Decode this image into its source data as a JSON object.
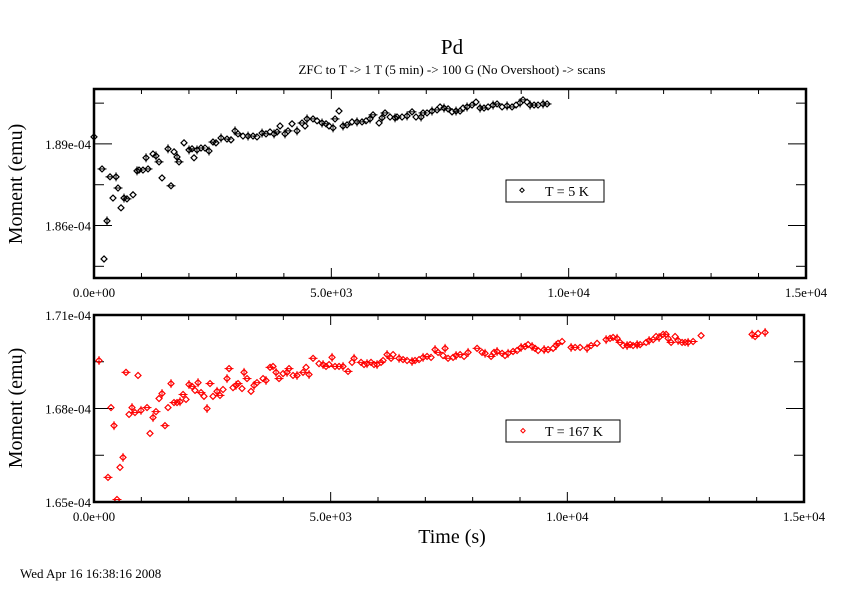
{
  "chart_data": {
    "title": "Pd",
    "subtitle": "ZFC to T -> 1 T (5 min) -> 100 G (No Overshoot) -> scans",
    "xlabel": "Time (s)",
    "timestamp": "Wed Apr 16 16:38:16 2008",
    "panels": [
      {
        "type": "scatter",
        "ylabel": "Moment (emu)",
        "xlim": [
          0,
          15000
        ],
        "ylim": [
          0.00018407,
          0.00019102
        ],
        "x_ticks": [
          0,
          5000,
          10000,
          15000
        ],
        "x_tick_labels": [
          "0.0e+00",
          "5.0e+03",
          "1.0e+04",
          "1.5e+04"
        ],
        "y_ticks": [
          0.000186,
          0.000189
        ],
        "y_tick_labels": [
          "1.86e-04",
          "1.89e-04"
        ],
        "grid": false,
        "legend_position": "center-right",
        "series": [
          {
            "name": "T = 5 K",
            "color": "#000000",
            "x": [
              0,
              169,
              211,
              274,
              337,
              400,
              464,
              506,
              569,
              632,
              695,
              822,
              906,
              948,
              1032,
              1096,
              1138,
              1243,
              1306,
              1370,
              1433,
              1559,
              1622,
              1686,
              1749,
              1791,
              1896,
              2002,
              2065,
              2107,
              2170,
              2254,
              2339,
              2423,
              2507,
              2570,
              2676,
              2802,
              2886,
              2971,
              3034,
              3139,
              3245,
              3350,
              3434,
              3540,
              3624,
              3708,
              3793,
              3856,
              3919,
              4024,
              4088,
              4172,
              4277,
              4383,
              4446,
              4488,
              4614,
              4699,
              4804,
              4888,
              4951,
              5036,
              5078,
              5162,
              5246,
              5331,
              5436,
              5541,
              5647,
              5731,
              5815,
              5878,
              6005,
              6068,
              6131,
              6237,
              6342,
              6384,
              6490,
              6595,
              6700,
              6784,
              6890,
              6932,
              7016,
              7121,
              7227,
              7290,
              7374,
              7459,
              7543,
              7627,
              7712,
              7775,
              7859,
              7964,
              8048,
              8133,
              8217,
              8302,
              8407,
              8491,
              8597,
              8702,
              8807,
              8892,
              8976,
              9039,
              9123,
              9187,
              9271,
              9355,
              9460,
              9545
            ],
            "y": [
              0.00018926,
              0.00018808,
              0.00018477,
              0.00018617,
              0.00018779,
              0.00018701,
              0.00018779,
              0.00018738,
              0.00018665,
              0.00018701,
              0.00018698,
              0.00018713,
              0.00018801,
              0.00018804,
              0.00018804,
              0.00018849,
              0.00018808,
              0.00018863,
              0.00018856,
              0.00018834,
              0.00018775,
              0.00018882,
              0.00018746,
              0.00018871,
              0.00018852,
              0.00018834,
              0.00018904,
              0.00018878,
              0.00018882,
              0.00018849,
              0.00018878,
              0.00018885,
              0.00018885,
              0.00018874,
              0.00018907,
              0.00018904,
              0.00018922,
              0.00018918,
              0.00018915,
              0.00018948,
              0.00018937,
              0.00018929,
              0.00018929,
              0.00018929,
              0.00018926,
              0.0001894,
              0.00018937,
              0.00018944,
              0.00018937,
              0.00018944,
              0.00018966,
              0.00018937,
              0.00018948,
              0.00018974,
              0.00018948,
              0.00018977,
              0.00018966,
              0.00018992,
              0.00018992,
              0.00018985,
              0.00018977,
              0.00018974,
              0.00018966,
              0.00018959,
              0.00018992,
              0.00019021,
              0.00018966,
              0.0001897,
              0.00018981,
              0.00018981,
              0.00018981,
              0.00018985,
              0.00018992,
              0.00019007,
              0.00018977,
              0.00018996,
              0.00019014,
              0.00018999,
              0.00018996,
              0.00018999,
              0.00018999,
              0.00019003,
              0.00019018,
              0.00018999,
              0.00018999,
              0.00019014,
              0.00019014,
              0.00019021,
              0.00019025,
              0.00019036,
              0.00019032,
              0.00019029,
              0.00019018,
              0.00019021,
              0.00019021,
              0.00019032,
              0.00019036,
              0.00019043,
              0.00019054,
              0.00019032,
              0.00019032,
              0.00019036,
              0.00019043,
              0.00019047,
              0.00019036,
              0.0001904,
              0.00019036,
              0.00019043,
              0.00019051,
              0.00019062,
              0.00019054,
              0.00019043,
              0.00019043,
              0.00019043,
              0.00019047,
              0.00019047
            ]
          }
        ]
      },
      {
        "type": "scatter",
        "ylabel": "Moment (emu)",
        "xlim": [
          0,
          15000
        ],
        "ylim": [
          0.000165,
          0.000171
        ],
        "x_ticks": [
          0,
          5000,
          10000,
          15000
        ],
        "x_tick_labels": [
          "0.0e+00",
          "5.0e+03",
          "1.0e+04",
          "1.5e+04"
        ],
        "y_ticks": [
          0.000165,
          0.000168,
          0.000171
        ],
        "y_tick_labels": [
          "1.65e-04",
          "1.68e-04",
          "1.71e-04"
        ],
        "grid": false,
        "legend_position": "center-right",
        "series": [
          {
            "name": "T = 167 K",
            "color": "#ff0000",
            "x": [
              106,
              296,
              359,
              423,
              486,
              549,
              613,
              676,
              740,
              803,
              866,
              930,
              993,
              1120,
              1183,
              1247,
              1310,
              1374,
              1437,
              1500,
              1564,
              1627,
              1690,
              1754,
              1817,
              1881,
              1944,
              2007,
              2071,
              2134,
              2198,
              2261,
              2324,
              2388,
              2451,
              2514,
              2599,
              2662,
              2726,
              2810,
              2853,
              2937,
              3000,
              3043,
              3127,
              3170,
              3233,
              3317,
              3381,
              3444,
              3571,
              3634,
              3719,
              3782,
              3846,
              3909,
              3994,
              4078,
              4120,
              4205,
              4289,
              4416,
              4480,
              4543,
              4628,
              4754,
              4839,
              4902,
              4966,
              5029,
              5092,
              5177,
              5261,
              5367,
              5452,
              5494,
              5642,
              5705,
              5768,
              5853,
              5916,
              5980,
              6064,
              6107,
              6191,
              6276,
              6318,
              6445,
              6529,
              6614,
              6719,
              6783,
              6867,
              6952,
              7036,
              7121,
              7205,
              7269,
              7374,
              7417,
              7480,
              7586,
              7649,
              7734,
              7818,
              7903,
              8093,
              8198,
              8262,
              8389,
              8452,
              8515,
              8621,
              8684,
              8748,
              8853,
              8938,
              9023,
              9107,
              9170,
              9255,
              9318,
              9382,
              9509,
              9593,
              9699,
              9762,
              9804,
              9889,
              10079,
              10164,
              10269,
              10417,
              10502,
              10628,
              10819,
              10903,
              10966,
              11051,
              11114,
              11178,
              11262,
              11326,
              11389,
              11474,
              11537,
              11664,
              11727,
              11812,
              11875,
              11938,
              12023,
              12086,
              12129,
              12192,
              12277,
              12340,
              12424,
              12488,
              12551,
              12657,
              12826,
              13903,
              13967,
              14030,
              14178
            ],
            "y": [
              0.00016954,
              0.00016579,
              0.00016803,
              0.00016745,
              0.00016508,
              0.00016611,
              0.00016643,
              0.00016916,
              0.00016781,
              0.00016803,
              0.00016787,
              0.00016906,
              0.00016794,
              0.00016803,
              0.0001672,
              0.00016771,
              0.0001679,
              0.00016832,
              0.00016848,
              0.00016745,
              0.00016803,
              0.0001688,
              0.00016819,
              0.00016819,
              0.00016822,
              0.00016845,
              0.00016829,
              0.00016877,
              0.00016871,
              0.00016858,
              0.00016883,
              0.00016851,
              0.00016839,
              0.000168,
              0.0001688,
              0.00016839,
              0.00016855,
              0.00016842,
              0.00016861,
              0.00016896,
              0.00016928,
              0.00016867,
              0.00016874,
              0.0001688,
              0.00016864,
              0.00016916,
              0.00016896,
              0.00016855,
              0.00016874,
              0.00016883,
              0.00016896,
              0.0001689,
              0.00016932,
              0.00016935,
              0.00016916,
              0.00016896,
              0.00016912,
              0.00016916,
              0.00016928,
              0.00016906,
              0.00016906,
              0.00016916,
              0.00016932,
              0.00016909,
              0.00016961,
              0.00016944,
              0.00016941,
              0.00016935,
              0.00016941,
              0.00016964,
              0.00016935,
              0.00016935,
              0.00016935,
              0.00016919,
              0.00016948,
              0.00016961,
              0.00016948,
              0.00016941,
              0.00016944,
              0.00016948,
              0.00016941,
              0.00016941,
              0.00016948,
              0.00016954,
              0.00016973,
              0.00016961,
              0.00016973,
              0.00016961,
              0.00016957,
              0.00016954,
              0.00016951,
              0.00016954,
              0.00016957,
              0.00016964,
              0.00016967,
              0.00016964,
              0.00016989,
              0.0001698,
              0.0001697,
              0.00016993,
              0.00016961,
              0.00016964,
              0.0001697,
              0.00016973,
              0.00016967,
              0.0001698,
              0.00016993,
              0.0001698,
              0.00016977,
              0.00016967,
              0.0001698,
              0.00016983,
              0.00016977,
              0.0001697,
              0.00016977,
              0.00016983,
              0.00016986,
              0.00016996,
              0.00016999,
              0.00017005,
              0.00016999,
              0.00016993,
              0.00016986,
              0.00016989,
              0.00016989,
              0.00016993,
              0.00017002,
              0.00017009,
              0.00017015,
              0.00016996,
              0.00016996,
              0.00016996,
              0.00016993,
              0.00017002,
              0.00017009,
              0.00017021,
              0.00017025,
              0.00017028,
              0.00017025,
              0.00017012,
              0.00017002,
              0.00017002,
              0.00017005,
              0.00017002,
              0.00017005,
              0.00017005,
              0.00017012,
              0.00017018,
              0.00017021,
              0.00017031,
              0.00017028,
              0.00017038,
              0.00017038,
              0.00017025,
              0.00017012,
              0.00017031,
              0.00017018,
              0.00017012,
              0.00017012,
              0.00017012,
              0.00017015,
              0.00017034,
              0.00017038,
              0.00017031,
              0.00017041,
              0.00017044
            ]
          }
        ]
      }
    ]
  }
}
